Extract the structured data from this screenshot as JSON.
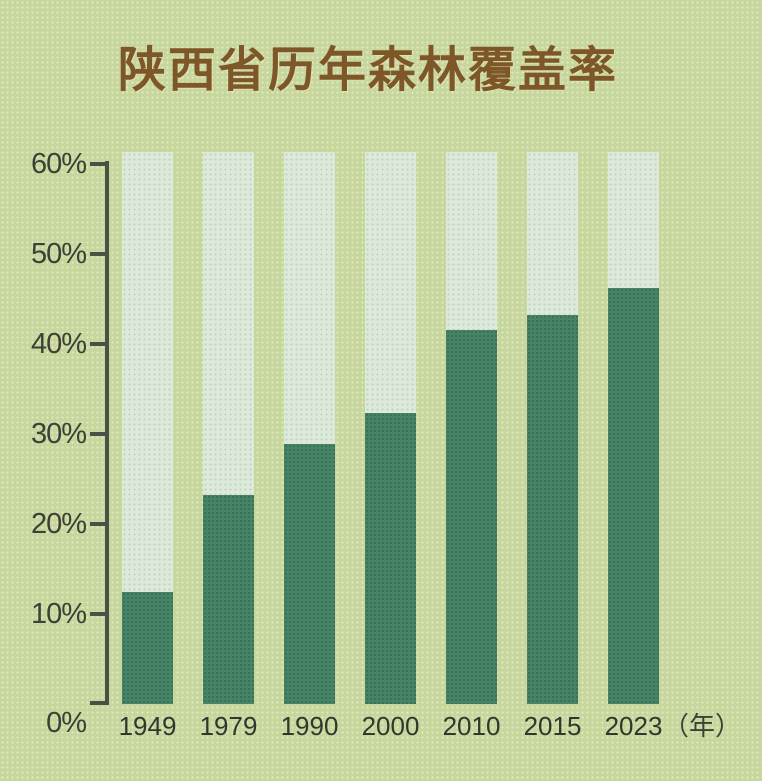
{
  "chart_data": {
    "type": "bar",
    "title": "陕西省历年森林覆盖率",
    "categories": [
      "1949",
      "1979",
      "1990",
      "2000",
      "2010",
      "2015",
      "2023"
    ],
    "values": [
      12.4,
      23.2,
      28.9,
      32.3,
      41.5,
      43.2,
      46.2
    ],
    "x_axis_suffix": "（年）",
    "xlabel": "",
    "ylabel": "",
    "y_tick_labels": [
      "0%",
      "10%",
      "20%",
      "30%",
      "40%",
      "50%",
      "60%"
    ],
    "ylim": [
      0,
      60
    ],
    "track_top_value": 61.3,
    "grid": false,
    "legend": null,
    "data_labels": false,
    "colors": {
      "background": "#c6d69c",
      "bar_fill": "#478467",
      "bar_track": "#dde9da",
      "title_text": "#7d5728",
      "axis_line": "#4c4f45",
      "tick_label_text": "#3d4037",
      "x_label_text": "#33362f"
    }
  }
}
